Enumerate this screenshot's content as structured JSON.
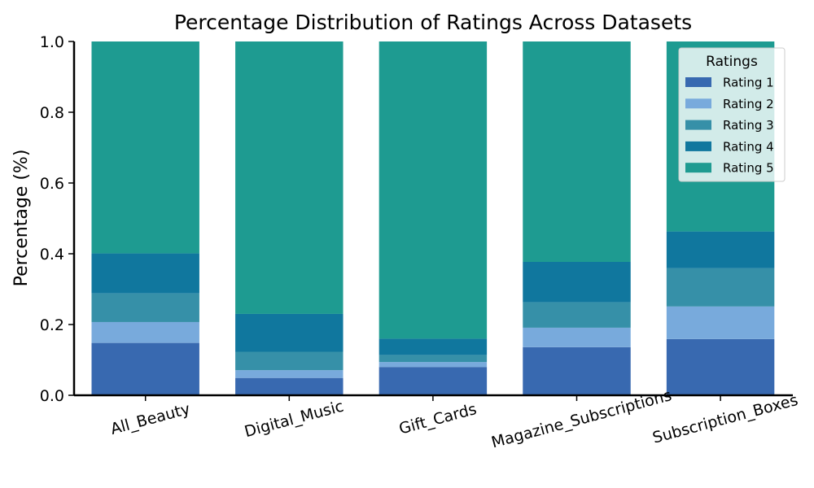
{
  "chart_data": {
    "type": "bar",
    "stacked": true,
    "title": "Percentage Distribution of Ratings Across Datasets",
    "xlabel": "",
    "ylabel": "Percentage (%)",
    "ylim": [
      0,
      1.0
    ],
    "yticks": [
      "0.0",
      "0.2",
      "0.4",
      "0.6",
      "0.8",
      "1.0"
    ],
    "categories": [
      "All_Beauty",
      "Digital_Music",
      "Gift_Cards",
      "Magazine_Subscriptions",
      "Subscription_Boxes"
    ],
    "series": [
      {
        "name": "Rating 1",
        "color": "#3869b0",
        "values": [
          0.148,
          0.049,
          0.08,
          0.136,
          0.159
        ]
      },
      {
        "name": "Rating 2",
        "color": "#78aadc",
        "values": [
          0.059,
          0.022,
          0.014,
          0.055,
          0.092
        ]
      },
      {
        "name": "Rating 3",
        "color": "#3690a8",
        "values": [
          0.081,
          0.052,
          0.02,
          0.072,
          0.108
        ]
      },
      {
        "name": "Rating 4",
        "color": "#10779e",
        "values": [
          0.113,
          0.107,
          0.046,
          0.114,
          0.104
        ]
      },
      {
        "name": "Rating 5",
        "color": "#1e9b91",
        "values": [
          0.599,
          0.77,
          0.84,
          0.623,
          0.537
        ]
      }
    ],
    "legend": {
      "title": "Ratings",
      "position": "top-right"
    },
    "grid": false
  }
}
